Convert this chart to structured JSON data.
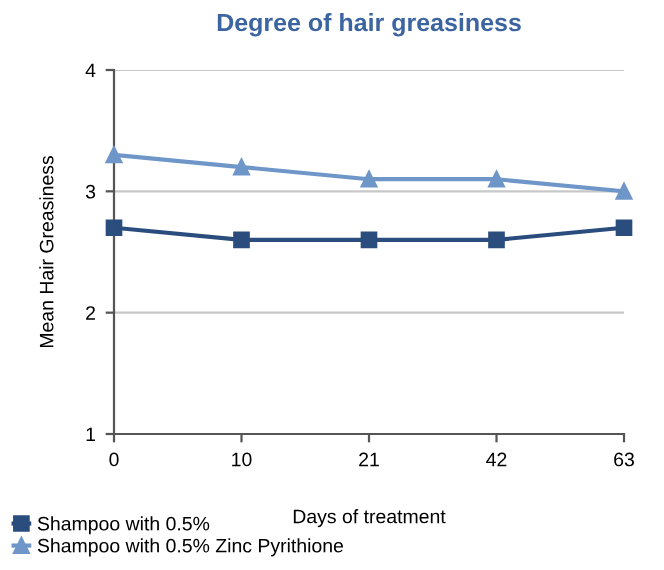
{
  "chart_data": {
    "type": "line",
    "title": "Degree of hair greasiness",
    "xlabel": "Days of treatment",
    "ylabel": "Mean Hair Greasiness",
    "categories": [
      "0",
      "10",
      "21",
      "42",
      "63"
    ],
    "series": [
      {
        "name": "Shampoo with 0.5%",
        "color": "#2a4d7e",
        "marker": "square",
        "values": [
          2.7,
          2.6,
          2.6,
          2.6,
          2.7
        ]
      },
      {
        "name": "Shampoo with 0.5% Zinc Pyrithione",
        "color": "#6f96c8",
        "marker": "triangle",
        "values": [
          3.3,
          3.2,
          3.1,
          3.1,
          3.0
        ]
      }
    ],
    "ylim": [
      1,
      4
    ],
    "yticks": [
      1,
      2,
      3,
      4
    ],
    "grid": "y",
    "legend": "bottom"
  }
}
